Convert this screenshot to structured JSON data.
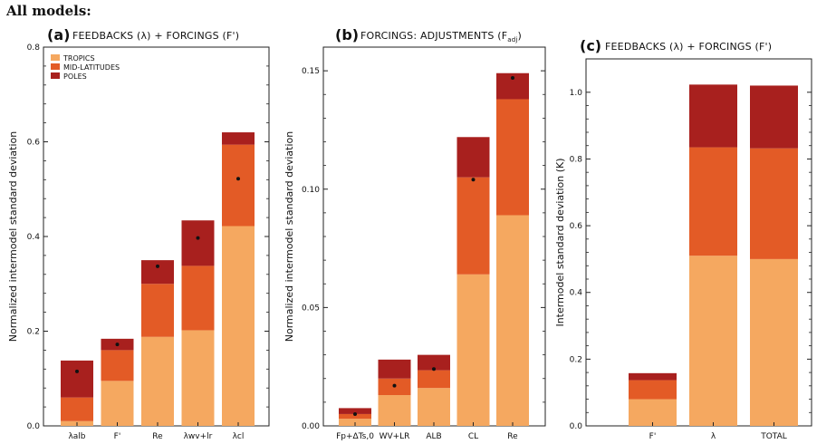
{
  "heading": "All models:",
  "colors": {
    "tropics": "#F5A860",
    "mid_latitudes": "#E35B26",
    "poles": "#A8201E",
    "marker": "#111111"
  },
  "legend": [
    "TROPICS",
    "MID-LATITUDES",
    "POLES"
  ],
  "chart_data": [
    {
      "type": "bar",
      "stacked": true,
      "panel": "(a)",
      "title": "FEEDBACKS (λ) + FORCINGS (F')",
      "ylabel": "Normalized intermodel standard deviation",
      "ylim": [
        0,
        0.8
      ],
      "yticks": [
        "0.0",
        "0.2",
        "0.4",
        "0.6",
        "0.8"
      ],
      "categories": [
        "λalb",
        "F'",
        "Re",
        "λwv+lr",
        "λcl"
      ],
      "series": [
        {
          "name": "TROPICS",
          "values": [
            0.01,
            0.095,
            0.188,
            0.202,
            0.422
          ]
        },
        {
          "name": "MID-LATITUDES",
          "values": [
            0.05,
            0.065,
            0.112,
            0.136,
            0.172
          ]
        },
        {
          "name": "POLES",
          "values": [
            0.078,
            0.024,
            0.05,
            0.096,
            0.026
          ]
        }
      ],
      "markers": [
        0.115,
        0.172,
        0.337,
        0.397,
        0.522
      ],
      "legend_position": "top-left"
    },
    {
      "type": "bar",
      "stacked": true,
      "panel": "(b)",
      "title": "FORCINGS: ADJUSTMENTS (F",
      "title_subscript": "adj",
      "title_end": ")",
      "ylabel": "Normalized intermodel standard deviation",
      "ylim": [
        0,
        0.16
      ],
      "yticks": [
        "0.00",
        "0.05",
        "0.10",
        "0.15"
      ],
      "categories": [
        "Fp+ΔTs,0",
        "WV+LR",
        "ALB",
        "CL",
        "Re"
      ],
      "series": [
        {
          "name": "TROPICS",
          "values": [
            0.003,
            0.013,
            0.016,
            0.064,
            0.089
          ]
        },
        {
          "name": "MID-LATITUDES",
          "values": [
            0.002,
            0.007,
            0.0075,
            0.041,
            0.049
          ]
        },
        {
          "name": "POLES",
          "values": [
            0.0025,
            0.008,
            0.0065,
            0.017,
            0.011
          ]
        }
      ],
      "markers": [
        0.005,
        0.017,
        0.024,
        0.104,
        0.147
      ]
    },
    {
      "type": "bar",
      "stacked": true,
      "panel": "(c)",
      "title": "FEEDBACKS (λ) + FORCINGS (F')",
      "ylabel": "Intermodel standard deviation (K)",
      "ylim": [
        0,
        1.1
      ],
      "yticks": [
        "0.0",
        "0.2",
        "0.4",
        "0.6",
        "0.8",
        "1.0"
      ],
      "categories": [
        "F'",
        "λ",
        "TOTAL"
      ],
      "series": [
        {
          "name": "TROPICS",
          "values": [
            0.08,
            0.51,
            0.5
          ]
        },
        {
          "name": "MID-LATITUDES",
          "values": [
            0.057,
            0.325,
            0.332
          ]
        },
        {
          "name": "POLES",
          "values": [
            0.021,
            0.188,
            0.188
          ]
        }
      ],
      "markers": []
    }
  ]
}
